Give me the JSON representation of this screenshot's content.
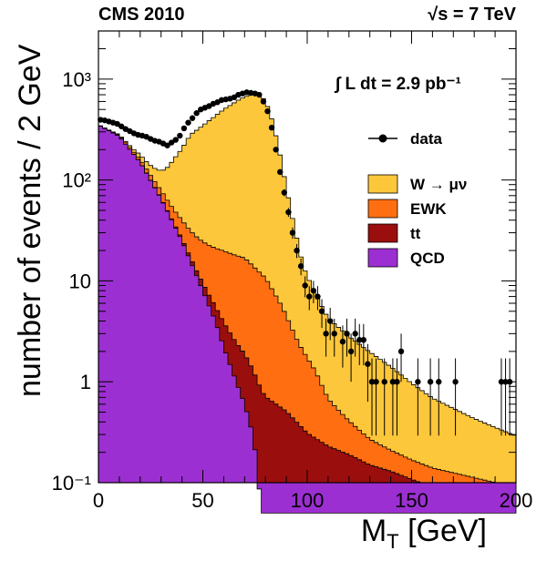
{
  "header": {
    "experiment": "CMS 2010",
    "energy": "√s = 7 TeV",
    "luminosity": "∫ L dt = 2.9 pb⁻¹"
  },
  "chart_data": {
    "type": "area",
    "stacked": true,
    "xlabel": "M_T [GeV]",
    "ylabel": "number of events / 2 GeV",
    "xlim": [
      0,
      200
    ],
    "ylim": [
      0.1,
      3000
    ],
    "yscale": "log",
    "bin_width_gev": 2,
    "x_ticks": [
      0,
      50,
      100,
      150,
      200
    ],
    "y_ticks": [
      {
        "value": 0.1,
        "label": "10⁻¹"
      },
      {
        "value": 1,
        "label": "1"
      },
      {
        "value": 10,
        "label": "10"
      },
      {
        "value": 100,
        "label": "10²"
      },
      {
        "value": 1000,
        "label": "10³"
      }
    ],
    "legend_position": "right",
    "stack_order": [
      "QCD",
      "tt",
      "EWK",
      "W → μν"
    ],
    "series": [
      {
        "name": "W → μν",
        "color": "#fcc73a",
        "anchors": [
          [
            0,
            0.6
          ],
          [
            10,
            5
          ],
          [
            20,
            18
          ],
          [
            30,
            45
          ],
          [
            36,
            110
          ],
          [
            44,
            250
          ],
          [
            52,
            350
          ],
          [
            60,
            480
          ],
          [
            68,
            620
          ],
          [
            74,
            700
          ],
          [
            78,
            690
          ],
          [
            82,
            480
          ],
          [
            86,
            220
          ],
          [
            90,
            80
          ],
          [
            94,
            30
          ],
          [
            98,
            12
          ],
          [
            104,
            6
          ],
          [
            110,
            3.6
          ],
          [
            120,
            2.4
          ],
          [
            130,
            1.7
          ],
          [
            140,
            1.2
          ],
          [
            150,
            0.8
          ],
          [
            160,
            0.55
          ],
          [
            180,
            0.32
          ],
          [
            200,
            0.2
          ]
        ]
      },
      {
        "name": "EWK",
        "color": "#ff6f12",
        "anchors": [
          [
            0,
            2
          ],
          [
            10,
            6
          ],
          [
            20,
            10
          ],
          [
            30,
            13
          ],
          [
            40,
            14
          ],
          [
            50,
            15
          ],
          [
            60,
            16
          ],
          [
            70,
            15
          ],
          [
            80,
            10
          ],
          [
            88,
            5
          ],
          [
            96,
            2
          ],
          [
            104,
            1
          ],
          [
            110,
            0.45
          ],
          [
            120,
            0.22
          ],
          [
            130,
            0.12
          ],
          [
            140,
            0.08
          ],
          [
            150,
            0.06
          ],
          [
            160,
            0.05
          ],
          [
            200,
            0.03
          ]
        ]
      },
      {
        "name": "tt",
        "color": "#9b0e0e",
        "anchors": [
          [
            0,
            0.3
          ],
          [
            30,
            0.8
          ],
          [
            50,
            1.5
          ],
          [
            60,
            1.7
          ],
          [
            70,
            1.3
          ],
          [
            80,
            0.7
          ],
          [
            90,
            0.5
          ],
          [
            100,
            0.3
          ],
          [
            110,
            0.22
          ],
          [
            120,
            0.18
          ],
          [
            130,
            0.14
          ],
          [
            140,
            0.12
          ],
          [
            160,
            0.08
          ],
          [
            200,
            0.05
          ]
        ]
      },
      {
        "name": "QCD",
        "color": "#9c2fd1",
        "anchors": [
          [
            0,
            350
          ],
          [
            10,
            270
          ],
          [
            20,
            150
          ],
          [
            30,
            65
          ],
          [
            40,
            25
          ],
          [
            50,
            8
          ],
          [
            56,
            4
          ],
          [
            60,
            2.2
          ],
          [
            66,
            1
          ],
          [
            70,
            0.6
          ],
          [
            74,
            0.3
          ],
          [
            76,
            0.15
          ],
          [
            78,
            0.05
          ],
          [
            80,
            0.01
          ]
        ]
      }
    ],
    "data": {
      "name": "data",
      "marker": "filled circle",
      "points": [
        [
          1,
          395
        ],
        [
          3,
          390
        ],
        [
          5,
          380
        ],
        [
          7,
          370
        ],
        [
          9,
          360
        ],
        [
          11,
          340
        ],
        [
          13,
          320
        ],
        [
          15,
          305
        ],
        [
          17,
          290
        ],
        [
          19,
          280
        ],
        [
          21,
          275
        ],
        [
          23,
          268
        ],
        [
          25,
          255
        ],
        [
          27,
          245
        ],
        [
          29,
          240
        ],
        [
          31,
          230
        ],
        [
          33,
          220
        ],
        [
          35,
          235
        ],
        [
          37,
          250
        ],
        [
          39,
          275
        ],
        [
          41,
          325
        ],
        [
          43,
          370
        ],
        [
          45,
          410
        ],
        [
          47,
          460
        ],
        [
          49,
          500
        ],
        [
          51,
          520
        ],
        [
          53,
          540
        ],
        [
          55,
          570
        ],
        [
          57,
          590
        ],
        [
          59,
          620
        ],
        [
          61,
          630
        ],
        [
          63,
          640
        ],
        [
          65,
          660
        ],
        [
          67,
          700
        ],
        [
          69,
          720
        ],
        [
          71,
          740
        ],
        [
          73,
          730
        ],
        [
          75,
          720
        ],
        [
          77,
          700
        ],
        [
          79,
          600
        ],
        [
          81,
          480
        ],
        [
          83,
          330
        ],
        [
          85,
          200
        ],
        [
          87,
          120
        ],
        [
          89,
          75
        ],
        [
          91,
          48
        ],
        [
          93,
          30
        ],
        [
          95,
          20
        ],
        [
          97,
          14
        ],
        [
          99,
          9
        ],
        [
          101,
          7
        ],
        [
          103,
          8
        ],
        [
          105,
          7
        ],
        [
          107,
          5
        ],
        [
          109,
          3
        ],
        [
          111,
          4
        ],
        [
          113,
          3
        ],
        [
          117,
          2.5
        ],
        [
          119,
          3
        ],
        [
          121,
          2
        ],
        [
          123,
          3
        ],
        [
          125,
          2.6
        ],
        [
          127,
          2.6
        ],
        [
          129,
          1.5
        ],
        [
          131,
          1
        ],
        [
          133,
          1
        ],
        [
          137,
          1
        ],
        [
          141,
          1
        ],
        [
          143,
          1
        ],
        [
          145,
          2
        ],
        [
          153,
          1
        ],
        [
          159,
          1
        ],
        [
          163,
          1
        ],
        [
          171,
          1
        ],
        [
          193,
          1
        ],
        [
          195,
          1
        ],
        [
          197,
          1
        ]
      ]
    },
    "legend": [
      {
        "label": "data",
        "kind": "marker"
      },
      {
        "label": "W → μν",
        "color": "#fcc73a"
      },
      {
        "label": "EWK",
        "color": "#ff6f12"
      },
      {
        "label": "tt",
        "color": "#9b0e0e"
      },
      {
        "label": "QCD",
        "color": "#9c2fd1"
      }
    ]
  }
}
